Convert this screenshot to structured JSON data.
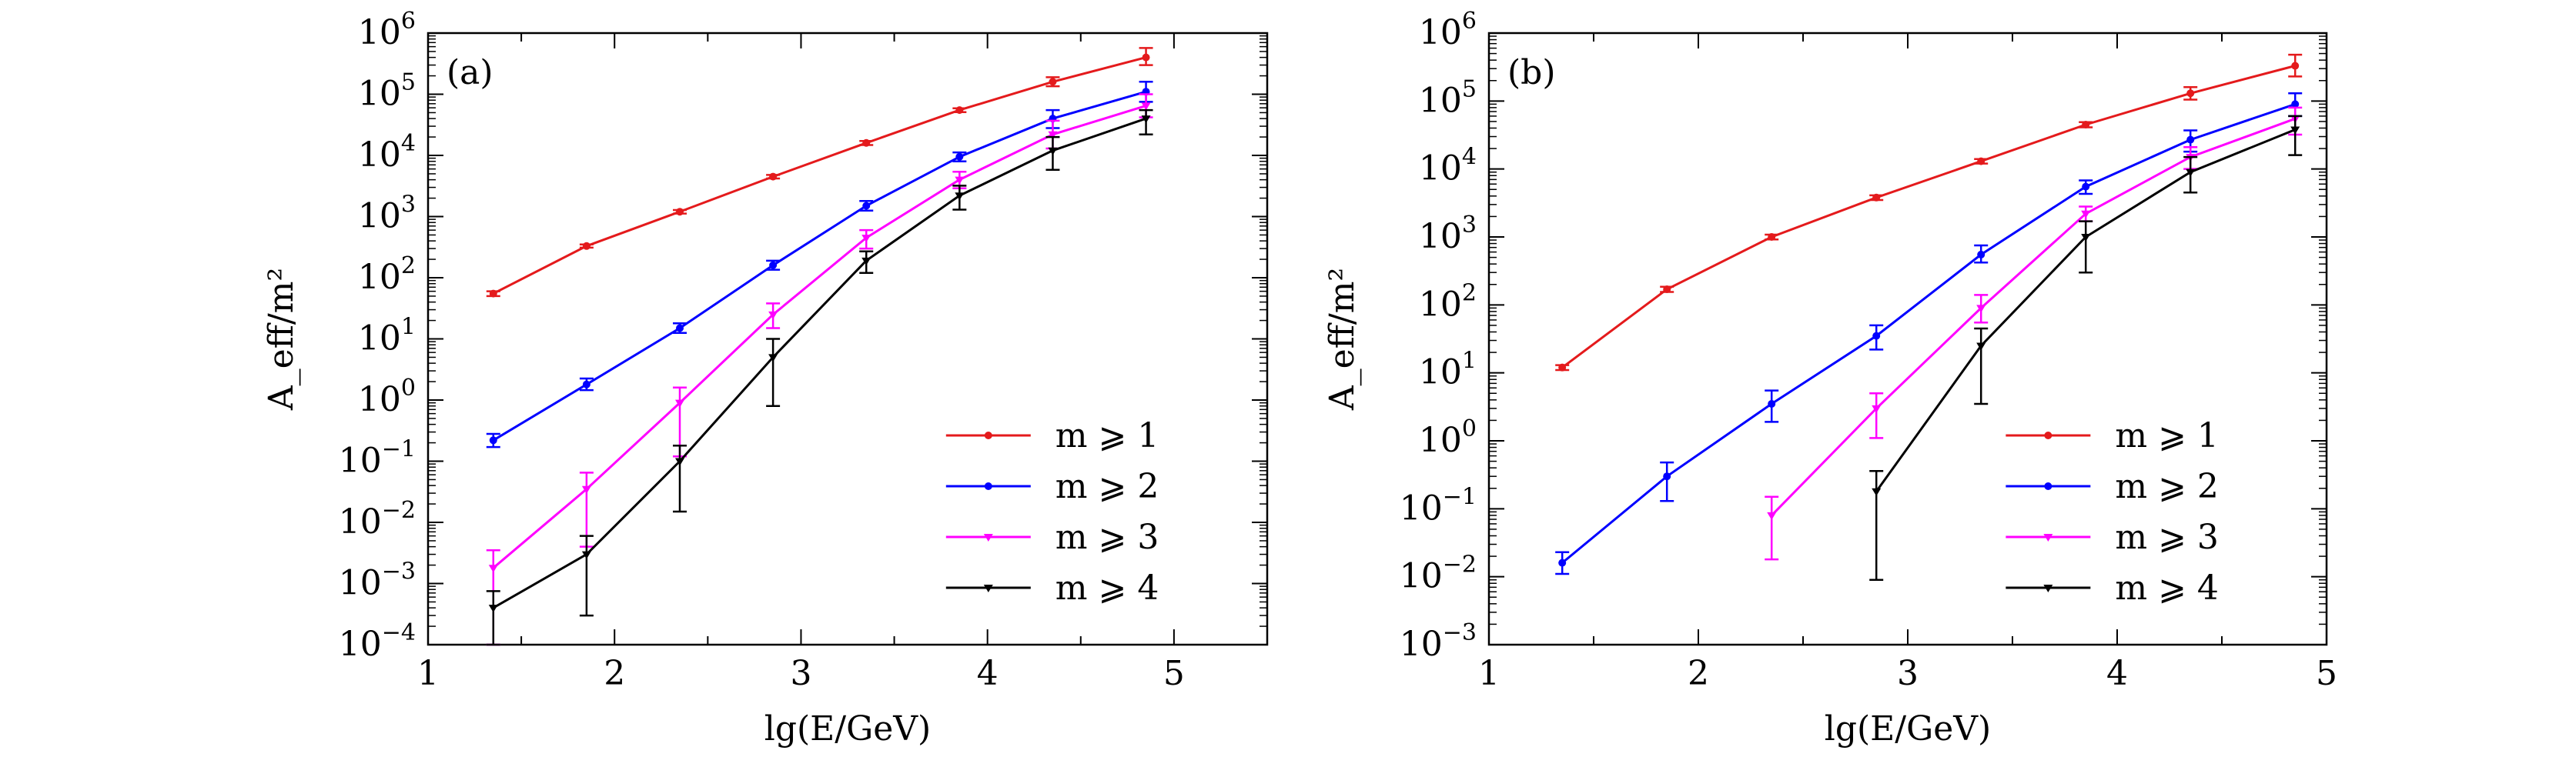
{
  "chart_data": [
    {
      "type": "line",
      "panel_label": "(a)",
      "xlabel": "lg(E/GeV)",
      "ylabel": "A_eff/m²",
      "xlim": [
        1,
        5.5
      ],
      "ylim": [
        0.0001,
        1000000
      ],
      "y_scale": "log",
      "x_ticks": [
        "1",
        "2",
        "3",
        "4",
        "5"
      ],
      "y_ticks": [
        {
          "base": "10",
          "exp": "−4"
        },
        {
          "base": "10",
          "exp": "−3"
        },
        {
          "base": "10",
          "exp": "−2"
        },
        {
          "base": "10",
          "exp": "−1"
        },
        {
          "base": "10",
          "exp": "0"
        },
        {
          "base": "10",
          "exp": "1"
        },
        {
          "base": "10",
          "exp": "2"
        },
        {
          "base": "10",
          "exp": "3"
        },
        {
          "base": "10",
          "exp": "4"
        },
        {
          "base": "10",
          "exp": "5"
        },
        {
          "base": "10",
          "exp": "6"
        }
      ],
      "legend_position": "lower-right",
      "grid": false,
      "x": [
        1.35,
        1.85,
        2.35,
        2.85,
        3.35,
        3.85,
        4.35,
        4.85
      ],
      "series": [
        {
          "name": "m ⩾ 1",
          "color": "#e41a1c",
          "marker": "dot",
          "values": [
            55,
            330,
            1200,
            4500,
            16000,
            55000,
            160000,
            400000
          ],
          "err_low": [
            50,
            310,
            1120,
            4200,
            14800,
            51000,
            135000,
            300000
          ],
          "err_high": [
            60,
            350,
            1280,
            4800,
            17200,
            59000,
            190000,
            570000
          ]
        },
        {
          "name": "m ⩾ 2",
          "color": "#0000ff",
          "marker": "dot",
          "values": [
            0.22,
            1.8,
            15,
            160,
            1500,
            9500,
            40000,
            110000
          ],
          "err_low": [
            0.17,
            1.45,
            12.5,
            135,
            1250,
            8000,
            28000,
            75000
          ],
          "err_high": [
            0.28,
            2.25,
            18,
            190,
            1800,
            11200,
            55000,
            160000
          ]
        },
        {
          "name": "m ⩾ 3",
          "color": "#ff00ff",
          "marker": "triangle",
          "values": [
            0.0018,
            0.035,
            0.9,
            25,
            450,
            4000,
            22000,
            65000
          ],
          "err_low": [
            0.0001,
            0.004,
            0.12,
            15,
            300,
            2900,
            13000,
            42000
          ],
          "err_high": [
            0.0035,
            0.065,
            1.6,
            38,
            600,
            5400,
            37000,
            100000
          ]
        },
        {
          "name": "m ⩾ 4",
          "color": "#000000",
          "marker": "triangle",
          "values": [
            0.0004,
            0.003,
            0.1,
            5,
            190,
            2200,
            12000,
            40000
          ],
          "err_low": [
            0.0001,
            0.0003,
            0.015,
            0.8,
            120,
            1300,
            5800,
            22000
          ],
          "err_high": [
            0.00075,
            0.006,
            0.18,
            10,
            270,
            3200,
            20000,
            55000
          ]
        }
      ]
    },
    {
      "type": "line",
      "panel_label": "(b)",
      "xlabel": "lg(E/GeV)",
      "ylabel": "A_eff/m²",
      "xlim": [
        1,
        5
      ],
      "ylim": [
        0.001,
        1000000
      ],
      "y_scale": "log",
      "x_ticks": [
        "1",
        "2",
        "3",
        "4",
        "5"
      ],
      "y_ticks": [
        {
          "base": "10",
          "exp": "−3"
        },
        {
          "base": "10",
          "exp": "−2"
        },
        {
          "base": "10",
          "exp": "−1"
        },
        {
          "base": "10",
          "exp": "0"
        },
        {
          "base": "10",
          "exp": "1"
        },
        {
          "base": "10",
          "exp": "2"
        },
        {
          "base": "10",
          "exp": "3"
        },
        {
          "base": "10",
          "exp": "4"
        },
        {
          "base": "10",
          "exp": "5"
        },
        {
          "base": "10",
          "exp": "6"
        }
      ],
      "legend_position": "lower-right",
      "grid": false,
      "series": [
        {
          "name": "m ⩾ 1",
          "color": "#e41a1c",
          "marker": "dot",
          "x": [
            1.35,
            1.85,
            2.35,
            2.85,
            3.35,
            3.85,
            4.35,
            4.85
          ],
          "values": [
            12,
            170,
            1000,
            3800,
            13000,
            45000,
            130000,
            330000
          ],
          "err_low": [
            11,
            155,
            920,
            3500,
            12000,
            41000,
            105000,
            230000
          ],
          "err_high": [
            13,
            185,
            1080,
            4100,
            14000,
            49000,
            160000,
            480000
          ]
        },
        {
          "name": "m ⩾ 2",
          "color": "#0000ff",
          "marker": "dot",
          "x": [
            1.35,
            1.85,
            2.35,
            2.85,
            3.35,
            3.85,
            4.35,
            4.85
          ],
          "values": [
            0.016,
            0.3,
            3.5,
            35,
            550,
            5500,
            27000,
            90000
          ],
          "err_low": [
            0.011,
            0.13,
            1.9,
            22,
            420,
            4300,
            18000,
            60000
          ],
          "err_high": [
            0.023,
            0.48,
            5.5,
            50,
            750,
            6800,
            37000,
            130000
          ]
        },
        {
          "name": "m ⩾ 3",
          "color": "#ff00ff",
          "marker": "triangle",
          "x": [
            2.35,
            2.85,
            3.35,
            3.85,
            4.35,
            4.85
          ],
          "values": [
            0.08,
            3,
            90,
            2200,
            15000,
            55000
          ],
          "err_low": [
            0.018,
            1.1,
            55,
            1700,
            10000,
            32000
          ],
          "err_high": [
            0.15,
            5,
            140,
            2800,
            21000,
            80000
          ]
        },
        {
          "name": "m ⩾ 4",
          "color": "#000000",
          "marker": "triangle",
          "x": [
            2.85,
            3.35,
            3.85,
            4.35,
            4.85
          ],
          "values": [
            0.18,
            25,
            1000,
            9000,
            38000
          ],
          "err_low": [
            0.009,
            3.5,
            300,
            4500,
            16000
          ],
          "err_high": [
            0.36,
            45,
            1700,
            15000,
            60000
          ]
        }
      ]
    }
  ]
}
